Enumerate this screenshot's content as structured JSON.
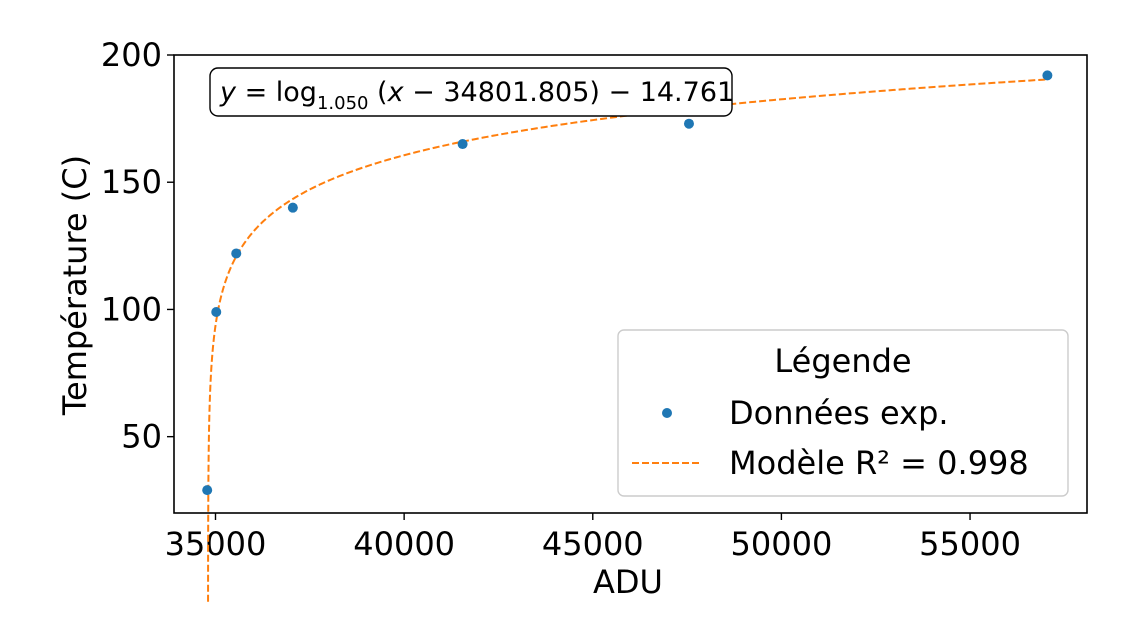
{
  "chart_data": {
    "type": "scatter",
    "title": "",
    "xlabel": "ADU",
    "ylabel": "Température (C)",
    "xlim": [
      33900,
      58100
    ],
    "ylim": [
      20,
      200
    ],
    "x_ticks": [
      35000,
      40000,
      45000,
      50000,
      55000
    ],
    "x_tick_labels": [
      "35000",
      "40000",
      "45000",
      "50000",
      "55000"
    ],
    "y_ticks": [
      50,
      100,
      150,
      200
    ],
    "y_tick_labels": [
      "50",
      "100",
      "150",
      "200"
    ],
    "grid": false,
    "legend": {
      "placement": "lower-right",
      "title": "Légende",
      "entries": [
        "Données exp.",
        "Modèle R² = 0.998"
      ]
    },
    "annotation": {
      "placement": "top-left",
      "text_y": "y",
      "text_eq": " = log",
      "text_base": "1.050",
      "text_rest_open": " (",
      "text_x": "x",
      "text_rest": " − 34801.805) − 14.761"
    },
    "series": [
      {
        "name": "Données exp.",
        "kind": "scatter",
        "color": "#1f77b4",
        "x": [
          34780,
          35020,
          35550,
          37050,
          41550,
          47550,
          57050
        ],
        "y": [
          29,
          99,
          122,
          140,
          165,
          173,
          192
        ]
      },
      {
        "name": "Modèle R² = 0.998",
        "kind": "line",
        "style": "dashed",
        "color": "#ff7f0e",
        "model": {
          "base": 1.05,
          "x0": 34801.805,
          "offset": -14.761,
          "x_start": 34802.8,
          "x_end": 57050
        }
      }
    ]
  }
}
